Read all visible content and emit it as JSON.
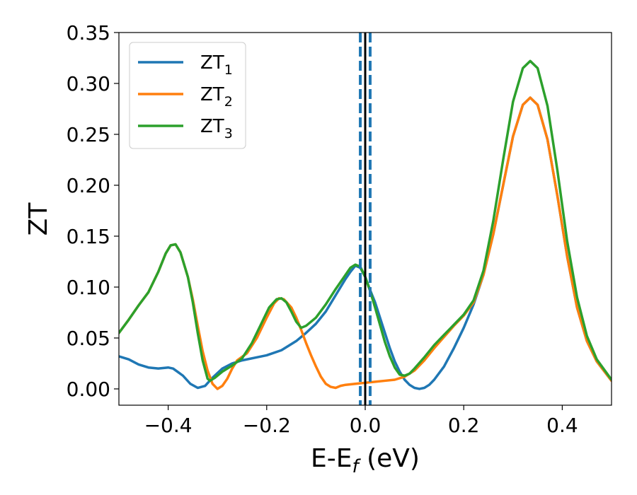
{
  "chart_data": {
    "type": "line",
    "xlabel": "E-E",
    "xlabel_sub": "f",
    "xlabel_unit": " (eV)",
    "ylabel": "ZT",
    "xlim": [
      -0.5,
      0.5
    ],
    "ylim": [
      -0.016,
      0.35
    ],
    "xticks": [
      -0.4,
      -0.2,
      0.0,
      0.2,
      0.4
    ],
    "xtick_labels": [
      "−0.4",
      "−0.2",
      "0.0",
      "0.2",
      "0.4"
    ],
    "yticks": [
      0.0,
      0.05,
      0.1,
      0.15,
      0.2,
      0.25,
      0.3,
      0.35
    ],
    "ytick_labels": [
      "0.00",
      "0.05",
      "0.10",
      "0.15",
      "0.20",
      "0.25",
      "0.30",
      "0.35"
    ],
    "grid": false,
    "legend_position": "top-left",
    "vertical_lines": [
      {
        "x": -0.01,
        "style": "dashed",
        "color": "#1f77b4"
      },
      {
        "x": 0.0,
        "style": "solid",
        "color": "#000000"
      },
      {
        "x": 0.01,
        "style": "dashed",
        "color": "#1f77b4"
      }
    ],
    "series": [
      {
        "name": "ZT",
        "name_sub": "1",
        "color": "#1f77b4",
        "points": [
          [
            -0.5,
            0.032
          ],
          [
            -0.48,
            0.029
          ],
          [
            -0.46,
            0.024
          ],
          [
            -0.44,
            0.021
          ],
          [
            -0.42,
            0.02
          ],
          [
            -0.4,
            0.021
          ],
          [
            -0.39,
            0.02
          ],
          [
            -0.37,
            0.013
          ],
          [
            -0.355,
            0.005
          ],
          [
            -0.34,
            0.001
          ],
          [
            -0.325,
            0.003
          ],
          [
            -0.31,
            0.011
          ],
          [
            -0.29,
            0.02
          ],
          [
            -0.27,
            0.025
          ],
          [
            -0.25,
            0.028
          ],
          [
            -0.22,
            0.031
          ],
          [
            -0.2,
            0.033
          ],
          [
            -0.17,
            0.038
          ],
          [
            -0.14,
            0.047
          ],
          [
            -0.12,
            0.055
          ],
          [
            -0.1,
            0.064
          ],
          [
            -0.08,
            0.076
          ],
          [
            -0.06,
            0.092
          ],
          [
            -0.04,
            0.108
          ],
          [
            -0.03,
            0.115
          ],
          [
            -0.02,
            0.121
          ],
          [
            -0.01,
            0.119
          ],
          [
            0.0,
            0.11
          ],
          [
            0.01,
            0.097
          ],
          [
            0.02,
            0.085
          ],
          [
            0.03,
            0.07
          ],
          [
            0.04,
            0.055
          ],
          [
            0.05,
            0.04
          ],
          [
            0.06,
            0.027
          ],
          [
            0.07,
            0.017
          ],
          [
            0.08,
            0.009
          ],
          [
            0.09,
            0.004
          ],
          [
            0.1,
            0.001
          ],
          [
            0.11,
            0.0
          ],
          [
            0.12,
            0.001
          ],
          [
            0.13,
            0.004
          ],
          [
            0.14,
            0.009
          ],
          [
            0.16,
            0.022
          ],
          [
            0.18,
            0.04
          ],
          [
            0.2,
            0.06
          ],
          [
            0.22,
            0.083
          ],
          [
            0.24,
            0.112
          ],
          [
            0.26,
            0.152
          ],
          [
            0.28,
            0.2
          ],
          [
            0.3,
            0.248
          ],
          [
            0.32,
            0.279
          ],
          [
            0.335,
            0.286
          ],
          [
            0.35,
            0.279
          ],
          [
            0.37,
            0.245
          ],
          [
            0.39,
            0.19
          ],
          [
            0.41,
            0.13
          ],
          [
            0.43,
            0.08
          ],
          [
            0.45,
            0.047
          ],
          [
            0.47,
            0.027
          ],
          [
            0.5,
            0.008
          ]
        ]
      },
      {
        "name": "ZT",
        "name_sub": "2",
        "color": "#ff7f0e",
        "points": [
          [
            -0.5,
            0.055
          ],
          [
            -0.48,
            0.068
          ],
          [
            -0.46,
            0.082
          ],
          [
            -0.44,
            0.095
          ],
          [
            -0.42,
            0.115
          ],
          [
            -0.405,
            0.133
          ],
          [
            -0.395,
            0.141
          ],
          [
            -0.385,
            0.142
          ],
          [
            -0.375,
            0.134
          ],
          [
            -0.36,
            0.11
          ],
          [
            -0.35,
            0.088
          ],
          [
            -0.34,
            0.062
          ],
          [
            -0.33,
            0.037
          ],
          [
            -0.32,
            0.018
          ],
          [
            -0.31,
            0.005
          ],
          [
            -0.3,
            0.0
          ],
          [
            -0.29,
            0.003
          ],
          [
            -0.28,
            0.01
          ],
          [
            -0.27,
            0.02
          ],
          [
            -0.26,
            0.028
          ],
          [
            -0.24,
            0.035
          ],
          [
            -0.22,
            0.05
          ],
          [
            -0.2,
            0.07
          ],
          [
            -0.185,
            0.084
          ],
          [
            -0.175,
            0.089
          ],
          [
            -0.165,
            0.088
          ],
          [
            -0.15,
            0.08
          ],
          [
            -0.14,
            0.07
          ],
          [
            -0.13,
            0.058
          ],
          [
            -0.12,
            0.045
          ],
          [
            -0.11,
            0.033
          ],
          [
            -0.1,
            0.022
          ],
          [
            -0.09,
            0.012
          ],
          [
            -0.08,
            0.005
          ],
          [
            -0.07,
            0.002
          ],
          [
            -0.06,
            0.001
          ],
          [
            -0.05,
            0.003
          ],
          [
            -0.04,
            0.004
          ],
          [
            -0.02,
            0.005
          ],
          [
            0.0,
            0.006
          ],
          [
            0.02,
            0.007
          ],
          [
            0.04,
            0.008
          ],
          [
            0.06,
            0.009
          ],
          [
            0.08,
            0.012
          ],
          [
            0.1,
            0.018
          ],
          [
            0.12,
            0.028
          ],
          [
            0.14,
            0.04
          ],
          [
            0.16,
            0.051
          ],
          [
            0.18,
            0.062
          ],
          [
            0.2,
            0.072
          ],
          [
            0.22,
            0.085
          ],
          [
            0.24,
            0.112
          ],
          [
            0.26,
            0.152
          ],
          [
            0.28,
            0.2
          ],
          [
            0.3,
            0.248
          ],
          [
            0.32,
            0.279
          ],
          [
            0.335,
            0.286
          ],
          [
            0.35,
            0.279
          ],
          [
            0.37,
            0.245
          ],
          [
            0.39,
            0.19
          ],
          [
            0.41,
            0.13
          ],
          [
            0.43,
            0.08
          ],
          [
            0.45,
            0.047
          ],
          [
            0.47,
            0.027
          ],
          [
            0.5,
            0.008
          ]
        ]
      },
      {
        "name": "ZT",
        "name_sub": "3",
        "color": "#2ca02c",
        "points": [
          [
            -0.5,
            0.055
          ],
          [
            -0.48,
            0.068
          ],
          [
            -0.46,
            0.082
          ],
          [
            -0.44,
            0.095
          ],
          [
            -0.42,
            0.115
          ],
          [
            -0.405,
            0.133
          ],
          [
            -0.395,
            0.141
          ],
          [
            -0.385,
            0.142
          ],
          [
            -0.375,
            0.134
          ],
          [
            -0.36,
            0.11
          ],
          [
            -0.35,
            0.085
          ],
          [
            -0.34,
            0.055
          ],
          [
            -0.33,
            0.028
          ],
          [
            -0.32,
            0.01
          ],
          [
            -0.315,
            0.008
          ],
          [
            -0.305,
            0.011
          ],
          [
            -0.29,
            0.017
          ],
          [
            -0.27,
            0.023
          ],
          [
            -0.25,
            0.03
          ],
          [
            -0.23,
            0.045
          ],
          [
            -0.21,
            0.065
          ],
          [
            -0.195,
            0.08
          ],
          [
            -0.18,
            0.088
          ],
          [
            -0.17,
            0.089
          ],
          [
            -0.16,
            0.085
          ],
          [
            -0.15,
            0.076
          ],
          [
            -0.14,
            0.066
          ],
          [
            -0.13,
            0.06
          ],
          [
            -0.12,
            0.062
          ],
          [
            -0.1,
            0.07
          ],
          [
            -0.08,
            0.083
          ],
          [
            -0.06,
            0.098
          ],
          [
            -0.04,
            0.112
          ],
          [
            -0.03,
            0.119
          ],
          [
            -0.02,
            0.122
          ],
          [
            -0.01,
            0.12
          ],
          [
            0.0,
            0.11
          ],
          [
            0.01,
            0.096
          ],
          [
            0.02,
            0.08
          ],
          [
            0.03,
            0.063
          ],
          [
            0.04,
            0.046
          ],
          [
            0.05,
            0.032
          ],
          [
            0.06,
            0.021
          ],
          [
            0.07,
            0.014
          ],
          [
            0.08,
            0.013
          ],
          [
            0.09,
            0.015
          ],
          [
            0.1,
            0.02
          ],
          [
            0.12,
            0.031
          ],
          [
            0.14,
            0.043
          ],
          [
            0.16,
            0.053
          ],
          [
            0.18,
            0.063
          ],
          [
            0.2,
            0.073
          ],
          [
            0.22,
            0.087
          ],
          [
            0.24,
            0.116
          ],
          [
            0.26,
            0.165
          ],
          [
            0.28,
            0.225
          ],
          [
            0.3,
            0.282
          ],
          [
            0.32,
            0.315
          ],
          [
            0.335,
            0.322
          ],
          [
            0.35,
            0.315
          ],
          [
            0.37,
            0.278
          ],
          [
            0.39,
            0.215
          ],
          [
            0.41,
            0.145
          ],
          [
            0.43,
            0.09
          ],
          [
            0.45,
            0.052
          ],
          [
            0.47,
            0.029
          ],
          [
            0.5,
            0.009
          ]
        ]
      }
    ]
  }
}
